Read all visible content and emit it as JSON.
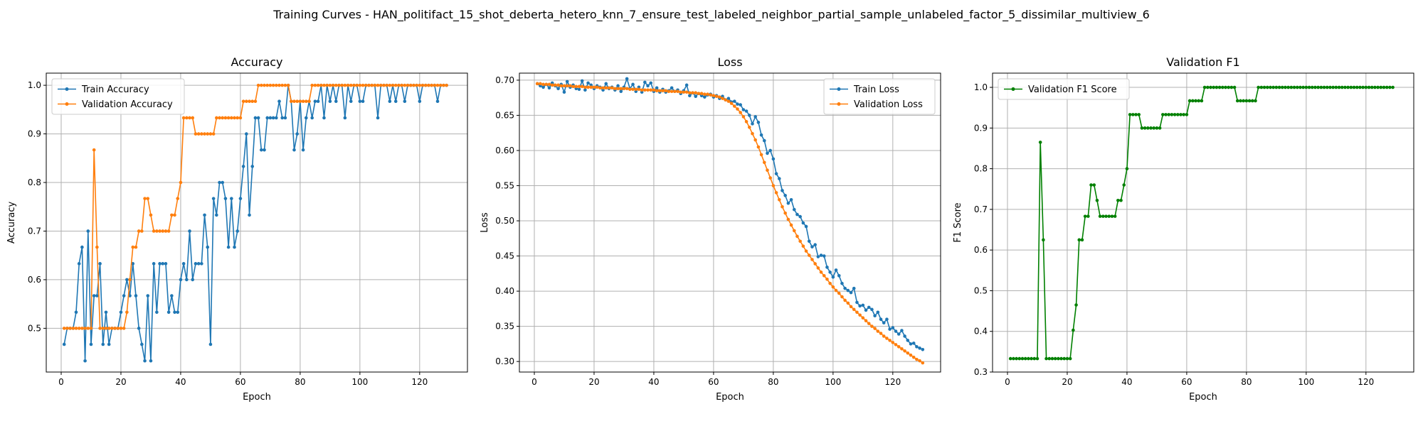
{
  "suptitle": "Training Curves - HAN_politifact_15_shot_deberta_hetero_knn_7_ensure_test_labeled_neighbor_partial_sample_unlabeled_factor_5_dissimilar_multiview_6",
  "chart_data": [
    {
      "type": "line",
      "title": "Accuracy",
      "xlabel": "Epoch",
      "ylabel": "Accuracy",
      "xlim": [
        -5,
        136
      ],
      "ylim": [
        0.41,
        1.025
      ],
      "xticks": [
        0,
        20,
        40,
        60,
        80,
        100,
        120
      ],
      "yticks": [
        0.5,
        0.6,
        0.7,
        0.8,
        0.9,
        1.0
      ],
      "ytick_labels": [
        "0.5",
        "0.6",
        "0.7",
        "0.8",
        "0.9",
        "1.0"
      ],
      "grid": true,
      "legend": "upper-left",
      "x": [
        1,
        2,
        3,
        4,
        5,
        6,
        7,
        8,
        9,
        10,
        11,
        12,
        13,
        14,
        15,
        16,
        17,
        18,
        19,
        20,
        21,
        22,
        23,
        24,
        25,
        26,
        27,
        28,
        29,
        30,
        31,
        32,
        33,
        34,
        35,
        36,
        37,
        38,
        39,
        40,
        41,
        42,
        43,
        44,
        45,
        46,
        47,
        48,
        49,
        50,
        51,
        52,
        53,
        54,
        55,
        56,
        57,
        58,
        59,
        60,
        61,
        62,
        63,
        64,
        65,
        66,
        67,
        68,
        69,
        70,
        71,
        72,
        73,
        74,
        75,
        76,
        77,
        78,
        79,
        80,
        81,
        82,
        83,
        84,
        85,
        86,
        87,
        88,
        89,
        90,
        91,
        92,
        93,
        94,
        95,
        96,
        97,
        98,
        99,
        100,
        101,
        102,
        103,
        104,
        105,
        106,
        107,
        108,
        109,
        110,
        111,
        112,
        113,
        114,
        115,
        116,
        117,
        118,
        119,
        120,
        121,
        122,
        123,
        124,
        125,
        126,
        127,
        128,
        129
      ],
      "series": [
        {
          "name": "Train Accuracy",
          "color": "#1f77b4",
          "values": [
            0.467,
            0.5,
            0.5,
            0.5,
            0.533,
            0.633,
            0.667,
            0.433,
            0.7,
            0.467,
            0.567,
            0.567,
            0.633,
            0.467,
            0.533,
            0.467,
            0.5,
            0.5,
            0.5,
            0.533,
            0.567,
            0.6,
            0.567,
            0.633,
            0.567,
            0.5,
            0.467,
            0.433,
            0.567,
            0.433,
            0.633,
            0.533,
            0.633,
            0.633,
            0.633,
            0.533,
            0.567,
            0.533,
            0.533,
            0.6,
            0.633,
            0.6,
            0.7,
            0.6,
            0.633,
            0.633,
            0.633,
            0.733,
            0.667,
            0.467,
            0.767,
            0.733,
            0.8,
            0.8,
            0.767,
            0.667,
            0.767,
            0.667,
            0.7,
            0.767,
            0.833,
            0.9,
            0.733,
            0.833,
            0.933,
            0.933,
            0.867,
            0.867,
            0.933,
            0.933,
            0.933,
            0.933,
            0.967,
            0.933,
            0.933,
            1.0,
            0.967,
            0.867,
            0.9,
            0.967,
            0.867,
            0.933,
            0.967,
            0.933,
            0.967,
            0.967,
            1.0,
            0.933,
            1.0,
            0.967,
            1.0,
            0.967,
            1.0,
            1.0,
            0.933,
            1.0,
            0.967,
            1.0,
            1.0,
            0.967,
            0.967,
            1.0,
            1.0,
            1.0,
            1.0,
            0.933,
            1.0,
            1.0,
            1.0,
            0.967,
            1.0,
            0.967,
            1.0,
            1.0,
            0.967,
            1.0,
            1.0,
            1.0,
            1.0,
            0.967,
            1.0,
            1.0,
            1.0,
            1.0,
            1.0,
            0.967,
            1.0,
            1.0,
            1.0
          ]
        },
        {
          "name": "Validation Accuracy",
          "color": "#ff7f0e",
          "values": [
            0.5,
            0.5,
            0.5,
            0.5,
            0.5,
            0.5,
            0.5,
            0.5,
            0.5,
            0.5,
            0.867,
            0.667,
            0.5,
            0.5,
            0.5,
            0.5,
            0.5,
            0.5,
            0.5,
            0.5,
            0.5,
            0.533,
            0.6,
            0.667,
            0.667,
            0.7,
            0.7,
            0.767,
            0.767,
            0.733,
            0.7,
            0.7,
            0.7,
            0.7,
            0.7,
            0.7,
            0.733,
            0.733,
            0.767,
            0.8,
            0.933,
            0.933,
            0.933,
            0.933,
            0.9,
            0.9,
            0.9,
            0.9,
            0.9,
            0.9,
            0.9,
            0.933,
            0.933,
            0.933,
            0.933,
            0.933,
            0.933,
            0.933,
            0.933,
            0.933,
            0.967,
            0.967,
            0.967,
            0.967,
            0.967,
            1.0,
            1.0,
            1.0,
            1.0,
            1.0,
            1.0,
            1.0,
            1.0,
            1.0,
            1.0,
            1.0,
            0.967,
            0.967,
            0.967,
            0.967,
            0.967,
            0.967,
            0.967,
            1.0,
            1.0,
            1.0,
            1.0,
            1.0,
            1.0,
            1.0,
            1.0,
            1.0,
            1.0,
            1.0,
            1.0,
            1.0,
            1.0,
            1.0,
            1.0,
            1.0,
            1.0,
            1.0,
            1.0,
            1.0,
            1.0,
            1.0,
            1.0,
            1.0,
            1.0,
            1.0,
            1.0,
            1.0,
            1.0,
            1.0,
            1.0,
            1.0,
            1.0,
            1.0,
            1.0,
            1.0,
            1.0,
            1.0,
            1.0,
            1.0,
            1.0,
            1.0,
            1.0,
            1.0,
            1.0
          ]
        }
      ]
    },
    {
      "type": "line",
      "title": "Loss",
      "xlabel": "Epoch",
      "ylabel": "Loss",
      "xlim": [
        -5,
        136
      ],
      "ylim": [
        0.285,
        0.71
      ],
      "xticks": [
        0,
        20,
        40,
        60,
        80,
        100,
        120
      ],
      "yticks": [
        0.3,
        0.35,
        0.4,
        0.45,
        0.5,
        0.55,
        0.6,
        0.65,
        0.7
      ],
      "ytick_labels": [
        "0.30",
        "0.35",
        "0.40",
        "0.45",
        "0.50",
        "0.55",
        "0.60",
        "0.65",
        "0.70"
      ],
      "grid": true,
      "legend": "upper-right",
      "x": [
        1,
        2,
        3,
        4,
        5,
        6,
        7,
        8,
        9,
        10,
        11,
        12,
        13,
        14,
        15,
        16,
        17,
        18,
        19,
        20,
        21,
        22,
        23,
        24,
        25,
        26,
        27,
        28,
        29,
        30,
        31,
        32,
        33,
        34,
        35,
        36,
        37,
        38,
        39,
        40,
        41,
        42,
        43,
        44,
        45,
        46,
        47,
        48,
        49,
        50,
        51,
        52,
        53,
        54,
        55,
        56,
        57,
        58,
        59,
        60,
        61,
        62,
        63,
        64,
        65,
        66,
        67,
        68,
        69,
        70,
        71,
        72,
        73,
        74,
        75,
        76,
        77,
        78,
        79,
        80,
        81,
        82,
        83,
        84,
        85,
        86,
        87,
        88,
        89,
        90,
        91,
        92,
        93,
        94,
        95,
        96,
        97,
        98,
        99,
        100,
        101,
        102,
        103,
        104,
        105,
        106,
        107,
        108,
        109,
        110,
        111,
        112,
        113,
        114,
        115,
        116,
        117,
        118,
        119,
        120,
        121,
        122,
        123,
        124,
        125,
        126,
        127,
        128,
        129,
        130
      ],
      "series": [
        {
          "name": "Train Loss",
          "color": "#1f77b4",
          "values": [
            0.695,
            0.692,
            0.69,
            0.694,
            0.689,
            0.696,
            0.692,
            0.688,
            0.694,
            0.683,
            0.698,
            0.69,
            0.693,
            0.688,
            0.687,
            0.699,
            0.686,
            0.696,
            0.693,
            0.688,
            0.692,
            0.69,
            0.686,
            0.695,
            0.688,
            0.69,
            0.686,
            0.692,
            0.684,
            0.69,
            0.702,
            0.688,
            0.694,
            0.684,
            0.69,
            0.683,
            0.697,
            0.692,
            0.696,
            0.684,
            0.689,
            0.683,
            0.687,
            0.683,
            0.685,
            0.689,
            0.684,
            0.686,
            0.681,
            0.685,
            0.693,
            0.678,
            0.682,
            0.677,
            0.681,
            0.678,
            0.676,
            0.679,
            0.68,
            0.676,
            0.678,
            0.674,
            0.677,
            0.672,
            0.674,
            0.669,
            0.67,
            0.666,
            0.665,
            0.658,
            0.656,
            0.65,
            0.638,
            0.648,
            0.64,
            0.622,
            0.614,
            0.596,
            0.6,
            0.588,
            0.567,
            0.56,
            0.543,
            0.536,
            0.525,
            0.53,
            0.516,
            0.509,
            0.506,
            0.497,
            0.492,
            0.471,
            0.463,
            0.466,
            0.449,
            0.451,
            0.45,
            0.434,
            0.427,
            0.42,
            0.43,
            0.422,
            0.411,
            0.404,
            0.401,
            0.398,
            0.404,
            0.384,
            0.379,
            0.38,
            0.373,
            0.377,
            0.374,
            0.365,
            0.37,
            0.36,
            0.355,
            0.36,
            0.346,
            0.348,
            0.343,
            0.339,
            0.344,
            0.336,
            0.33,
            0.325,
            0.326,
            0.321,
            0.319,
            0.317
          ]
        },
        {
          "name": "Validation Loss",
          "color": "#ff7f0e",
          "values": [
            0.695,
            0.695,
            0.694,
            0.694,
            0.694,
            0.693,
            0.693,
            0.693,
            0.692,
            0.692,
            0.692,
            0.692,
            0.691,
            0.691,
            0.691,
            0.691,
            0.69,
            0.69,
            0.69,
            0.69,
            0.69,
            0.689,
            0.689,
            0.689,
            0.689,
            0.689,
            0.688,
            0.688,
            0.688,
            0.688,
            0.688,
            0.687,
            0.687,
            0.687,
            0.687,
            0.686,
            0.686,
            0.686,
            0.686,
            0.686,
            0.685,
            0.685,
            0.685,
            0.685,
            0.684,
            0.684,
            0.684,
            0.684,
            0.683,
            0.683,
            0.683,
            0.682,
            0.682,
            0.682,
            0.681,
            0.681,
            0.68,
            0.68,
            0.679,
            0.678,
            0.677,
            0.676,
            0.674,
            0.672,
            0.67,
            0.667,
            0.663,
            0.659,
            0.654,
            0.648,
            0.641,
            0.633,
            0.624,
            0.615,
            0.605,
            0.594,
            0.583,
            0.572,
            0.561,
            0.55,
            0.54,
            0.53,
            0.52,
            0.511,
            0.502,
            0.494,
            0.486,
            0.478,
            0.471,
            0.464,
            0.457,
            0.451,
            0.445,
            0.439,
            0.433,
            0.427,
            0.422,
            0.417,
            0.411,
            0.406,
            0.401,
            0.397,
            0.392,
            0.387,
            0.383,
            0.378,
            0.374,
            0.37,
            0.366,
            0.362,
            0.358,
            0.354,
            0.35,
            0.347,
            0.343,
            0.34,
            0.336,
            0.333,
            0.33,
            0.327,
            0.324,
            0.321,
            0.318,
            0.315,
            0.312,
            0.309,
            0.306,
            0.303,
            0.301,
            0.298
          ]
        }
      ]
    },
    {
      "type": "line",
      "title": "Validation F1",
      "xlabel": "Epoch",
      "ylabel": "F1 Score",
      "xlim": [
        -5,
        136
      ],
      "ylim": [
        0.3,
        1.035
      ],
      "xticks": [
        0,
        20,
        40,
        60,
        80,
        100,
        120
      ],
      "yticks": [
        0.3,
        0.4,
        0.5,
        0.6,
        0.7,
        0.8,
        0.9,
        1.0
      ],
      "ytick_labels": [
        "0.3",
        "0.4",
        "0.5",
        "0.6",
        "0.7",
        "0.8",
        "0.9",
        "1.0"
      ],
      "grid": true,
      "legend": "upper-left",
      "x": [
        1,
        2,
        3,
        4,
        5,
        6,
        7,
        8,
        9,
        10,
        11,
        12,
        13,
        14,
        15,
        16,
        17,
        18,
        19,
        20,
        21,
        22,
        23,
        24,
        25,
        26,
        27,
        28,
        29,
        30,
        31,
        32,
        33,
        34,
        35,
        36,
        37,
        38,
        39,
        40,
        41,
        42,
        43,
        44,
        45,
        46,
        47,
        48,
        49,
        50,
        51,
        52,
        53,
        54,
        55,
        56,
        57,
        58,
        59,
        60,
        61,
        62,
        63,
        64,
        65,
        66,
        67,
        68,
        69,
        70,
        71,
        72,
        73,
        74,
        75,
        76,
        77,
        78,
        79,
        80,
        81,
        82,
        83,
        84,
        85,
        86,
        87,
        88,
        89,
        90,
        91,
        92,
        93,
        94,
        95,
        96,
        97,
        98,
        99,
        100,
        101,
        102,
        103,
        104,
        105,
        106,
        107,
        108,
        109,
        110,
        111,
        112,
        113,
        114,
        115,
        116,
        117,
        118,
        119,
        120,
        121,
        122,
        123,
        124,
        125,
        126,
        127,
        128,
        129
      ],
      "series": [
        {
          "name": "Validation F1 Score",
          "color": "#008000",
          "values": [
            0.333,
            0.333,
            0.333,
            0.333,
            0.333,
            0.333,
            0.333,
            0.333,
            0.333,
            0.333,
            0.865,
            0.625,
            0.333,
            0.333,
            0.333,
            0.333,
            0.333,
            0.333,
            0.333,
            0.333,
            0.333,
            0.403,
            0.465,
            0.625,
            0.625,
            0.683,
            0.683,
            0.76,
            0.76,
            0.722,
            0.683,
            0.683,
            0.683,
            0.683,
            0.683,
            0.683,
            0.722,
            0.722,
            0.76,
            0.8,
            0.933,
            0.933,
            0.933,
            0.933,
            0.9,
            0.9,
            0.9,
            0.9,
            0.9,
            0.9,
            0.9,
            0.933,
            0.933,
            0.933,
            0.933,
            0.933,
            0.933,
            0.933,
            0.933,
            0.933,
            0.967,
            0.967,
            0.967,
            0.967,
            0.967,
            1.0,
            1.0,
            1.0,
            1.0,
            1.0,
            1.0,
            1.0,
            1.0,
            1.0,
            1.0,
            1.0,
            0.967,
            0.967,
            0.967,
            0.967,
            0.967,
            0.967,
            0.967,
            1.0,
            1.0,
            1.0,
            1.0,
            1.0,
            1.0,
            1.0,
            1.0,
            1.0,
            1.0,
            1.0,
            1.0,
            1.0,
            1.0,
            1.0,
            1.0,
            1.0,
            1.0,
            1.0,
            1.0,
            1.0,
            1.0,
            1.0,
            1.0,
            1.0,
            1.0,
            1.0,
            1.0,
            1.0,
            1.0,
            1.0,
            1.0,
            1.0,
            1.0,
            1.0,
            1.0,
            1.0,
            1.0,
            1.0,
            1.0,
            1.0,
            1.0,
            1.0,
            1.0,
            1.0,
            1.0
          ]
        }
      ]
    }
  ]
}
